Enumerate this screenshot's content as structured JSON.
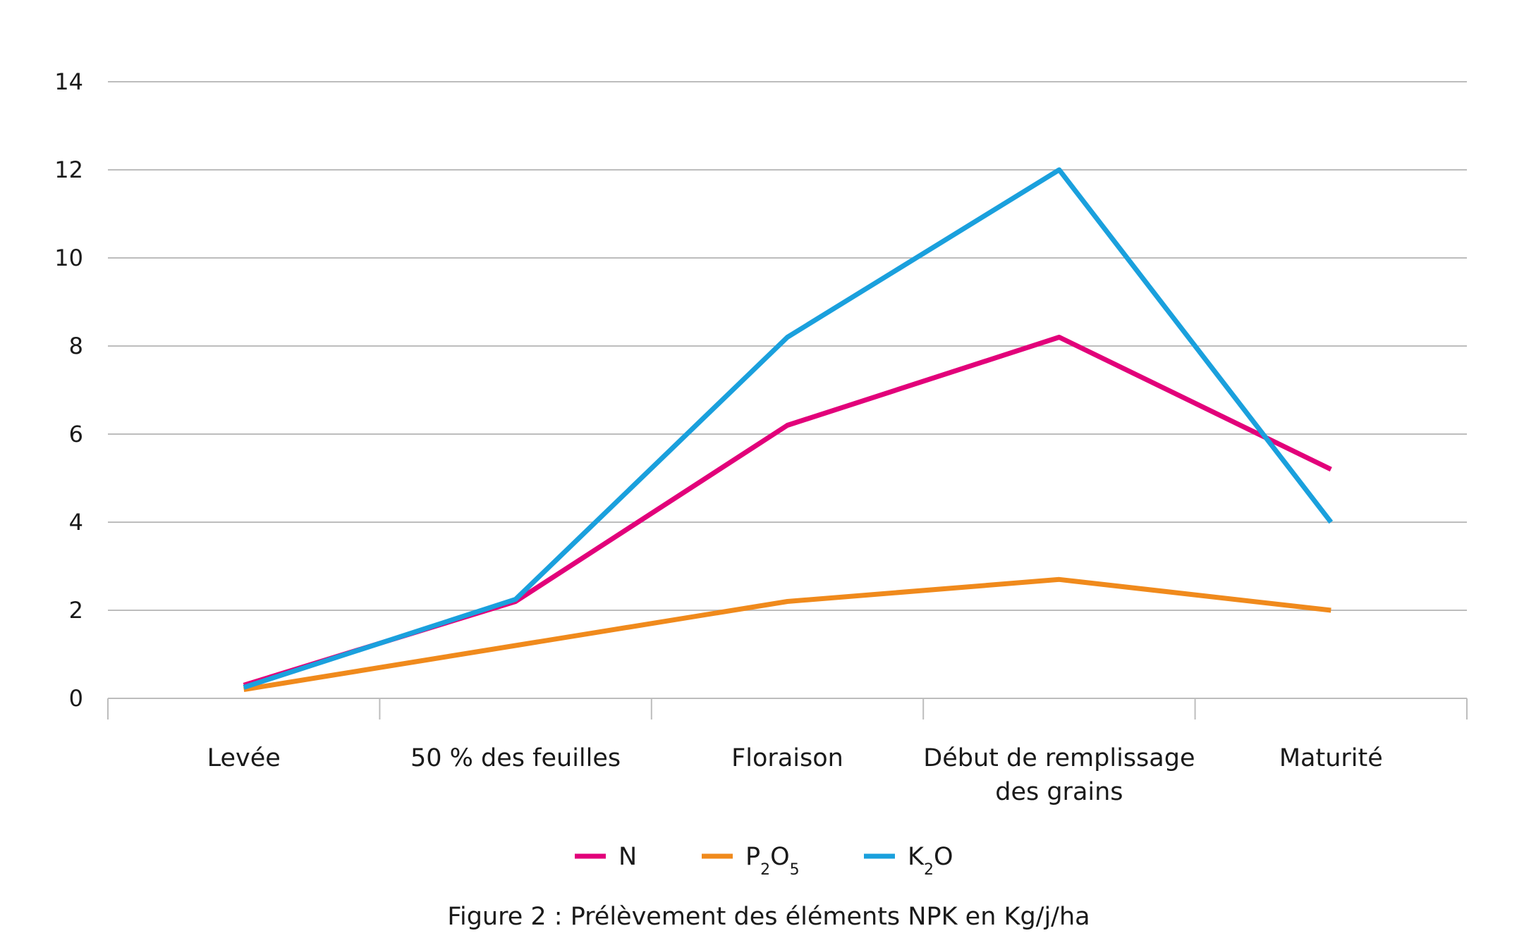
{
  "chart_data": {
    "type": "line",
    "categories": [
      [
        "Levée"
      ],
      [
        "50 % des feuilles"
      ],
      [
        "Floraison"
      ],
      [
        "Début de remplissage",
        "des grains"
      ],
      [
        "Maturité"
      ]
    ],
    "series": [
      {
        "name": "N",
        "name_parts": [
          {
            "t": "N",
            "sub": false
          }
        ],
        "color": "#e2007a",
        "values": [
          0.3,
          2.2,
          6.2,
          8.2,
          5.2
        ]
      },
      {
        "name": "P2O5",
        "name_parts": [
          {
            "t": "P",
            "sub": false
          },
          {
            "t": "2",
            "sub": true
          },
          {
            "t": "O",
            "sub": false
          },
          {
            "t": "5",
            "sub": true
          }
        ],
        "color": "#f08a1c",
        "values": [
          0.2,
          1.2,
          2.2,
          2.7,
          2.0
        ]
      },
      {
        "name": "K2O",
        "name_parts": [
          {
            "t": "K",
            "sub": false
          },
          {
            "t": "2",
            "sub": true
          },
          {
            "t": "O",
            "sub": false
          }
        ],
        "color": "#1aa0dd",
        "values": [
          0.25,
          2.25,
          8.2,
          12.0,
          4.0
        ]
      }
    ],
    "ylim": [
      0,
      14
    ],
    "yticks": [
      0,
      2,
      4,
      6,
      8,
      10,
      12,
      14
    ],
    "grid": true,
    "legend": "bottom",
    "caption": "Figure 2 : Prélèvement des éléments NPK en Kg/j/ha"
  }
}
